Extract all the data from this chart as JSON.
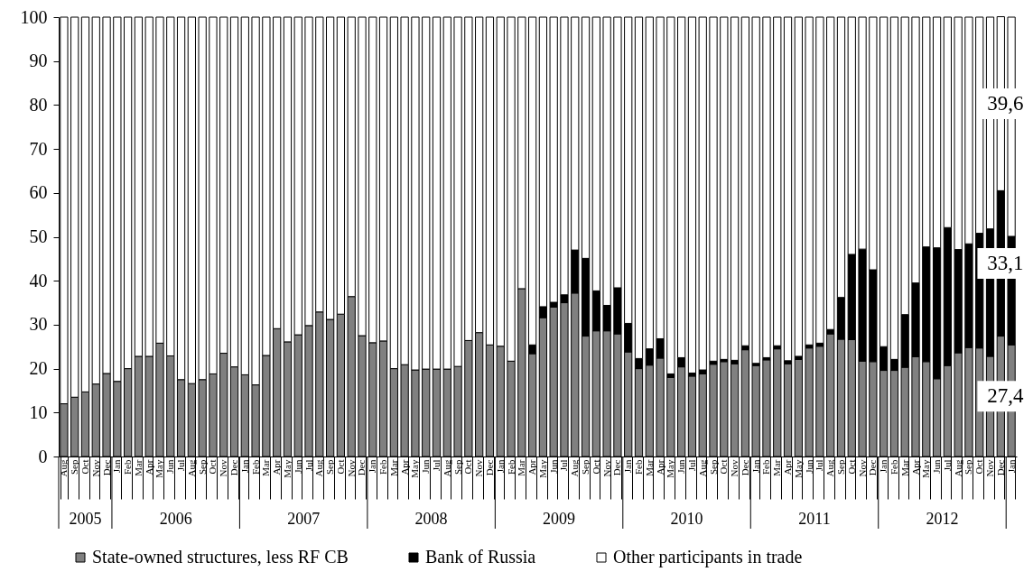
{
  "chart_data": {
    "type": "bar",
    "stacked": true,
    "legend": "bottom",
    "ylim": [
      0,
      100
    ],
    "yticks": [
      0,
      10,
      20,
      30,
      40,
      50,
      60,
      70,
      80,
      90,
      100
    ],
    "categories": [
      "Aug",
      "Sep",
      "Oct",
      "Nov",
      "Dec",
      "Jan",
      "Feb",
      "Mar",
      "Apr",
      "May",
      "Jun",
      "Jul",
      "Aug",
      "Sep",
      "Oct",
      "Nov",
      "Dec",
      "Jan",
      "Feb",
      "Mar",
      "Apr",
      "May",
      "Jun",
      "Jul",
      "Aug",
      "Sep",
      "Oct",
      "Nov",
      "Dec",
      "Jan",
      "Feb",
      "Mar",
      "Apr",
      "May",
      "Jun",
      "Jul",
      "Aug",
      "Sep",
      "Oct",
      "Nov",
      "Dec",
      "Jan",
      "Feb",
      "Mar",
      "Apr",
      "May",
      "Jun",
      "Jul",
      "Aug",
      "Sep",
      "Oct",
      "Nov",
      "Dec",
      "Jan",
      "Feb",
      "Mar",
      "Apr",
      "May",
      "Jun",
      "Jul",
      "Aug",
      "Sep",
      "Oct",
      "Nov",
      "Dec",
      "Jan",
      "Feb",
      "Mar",
      "Apr",
      "May",
      "Jun",
      "Jul",
      "Aug",
      "Sep",
      "Oct",
      "Nov",
      "Dec",
      "Jan",
      "Feb",
      "Mar",
      "Apr",
      "May",
      "Jun",
      "Jul",
      "Aug",
      "Sep",
      "Oct",
      "Nov",
      "Dec",
      "Jan"
    ],
    "annotations": [
      "2005",
      "2006",
      "2007",
      "2008",
      "2009",
      "2010",
      "2011",
      "2012"
    ],
    "series": [
      {
        "name": "State-owned structures, less RF CB",
        "color": "#808080",
        "values": [
          12.0,
          13.5,
          14.7,
          16.5,
          18.9,
          17.1,
          20.0,
          22.8,
          22.8,
          25.8,
          22.9,
          17.5,
          16.6,
          17.5,
          18.8,
          23.5,
          20.4,
          18.6,
          16.3,
          23.0,
          29.1,
          26.1,
          27.7,
          29.8,
          32.9,
          31.2,
          32.4,
          36.4,
          27.5,
          25.9,
          26.3,
          20.0,
          20.9,
          19.7,
          19.9,
          19.9,
          19.9,
          20.5,
          26.4,
          28.2,
          25.4,
          25.1,
          21.7,
          38.2,
          23.4,
          31.6,
          34.0,
          35.0,
          37.2,
          27.4,
          28.6,
          28.6,
          27.9,
          23.8,
          20.0,
          20.8,
          22.4,
          18.0,
          20.4,
          18.3,
          18.8,
          21.0,
          21.6,
          21.1,
          24.3,
          20.7,
          22.0,
          24.5,
          21.1,
          22.1,
          24.7,
          25.1,
          27.9,
          26.7,
          26.6,
          21.7,
          21.6,
          19.6,
          19.6,
          20.3,
          22.7,
          21.6,
          17.7,
          20.7,
          23.6,
          24.8,
          24.7,
          22.8,
          27.4,
          25.4
        ],
        "value_labels": [
          null,
          null,
          null,
          null,
          null,
          null,
          null,
          null,
          null,
          null,
          null,
          null,
          null,
          null,
          null,
          null,
          null,
          null,
          null,
          null,
          null,
          null,
          null,
          null,
          null,
          null,
          null,
          null,
          null,
          null,
          null,
          null,
          null,
          null,
          null,
          null,
          null,
          null,
          null,
          null,
          null,
          null,
          null,
          null,
          null,
          null,
          null,
          null,
          null,
          null,
          null,
          null,
          null,
          null,
          null,
          null,
          null,
          null,
          null,
          null,
          null,
          null,
          null,
          null,
          null,
          null,
          null,
          null,
          null,
          null,
          null,
          null,
          null,
          null,
          null,
          null,
          null,
          null,
          null,
          null,
          null,
          null,
          null,
          null,
          null,
          null,
          null,
          null,
          "27,4",
          null
        ]
      },
      {
        "name": "Bank of Russia",
        "color": "#000000",
        "values": [
          null,
          null,
          null,
          null,
          null,
          null,
          null,
          null,
          null,
          null,
          null,
          null,
          null,
          null,
          null,
          null,
          null,
          null,
          null,
          null,
          null,
          null,
          null,
          null,
          null,
          null,
          null,
          null,
          null,
          null,
          null,
          null,
          null,
          null,
          null,
          null,
          null,
          null,
          null,
          null,
          null,
          null,
          null,
          null,
          2.0,
          2.5,
          1.1,
          1.8,
          9.8,
          17.7,
          9.1,
          5.8,
          10.5,
          6.5,
          2.3,
          3.7,
          4.4,
          0.8,
          2.1,
          0.7,
          0.9,
          0.7,
          0.5,
          0.8,
          0.9,
          0.5,
          0.5,
          0.7,
          0.7,
          0.7,
          0.7,
          0.7,
          1.0,
          9.5,
          19.4,
          25.5,
          20.9,
          5.4,
          2.5,
          12.0,
          16.8,
          26.1,
          29.8,
          31.4,
          23.5,
          23.6,
          26.1,
          29.0,
          33.1,
          24.7
        ],
        "value_labels": [
          null,
          null,
          null,
          null,
          null,
          null,
          null,
          null,
          null,
          null,
          null,
          null,
          null,
          null,
          null,
          null,
          null,
          null,
          null,
          null,
          null,
          null,
          null,
          null,
          null,
          null,
          null,
          null,
          null,
          null,
          null,
          null,
          null,
          null,
          null,
          null,
          null,
          null,
          null,
          null,
          null,
          null,
          null,
          null,
          null,
          null,
          null,
          null,
          null,
          null,
          null,
          null,
          null,
          null,
          null,
          null,
          null,
          null,
          null,
          null,
          null,
          null,
          null,
          null,
          null,
          null,
          null,
          null,
          null,
          null,
          null,
          null,
          null,
          null,
          null,
          null,
          null,
          null,
          null,
          null,
          null,
          null,
          null,
          null,
          null,
          null,
          null,
          null,
          "33,1",
          null
        ]
      },
      {
        "name": "Other participants in trade",
        "color": "#ffffff",
        "values": [
          88.0,
          86.5,
          85.3,
          83.5,
          81.1,
          82.9,
          80.0,
          77.2,
          77.2,
          74.2,
          77.1,
          82.5,
          83.4,
          82.5,
          81.2,
          76.5,
          79.6,
          81.4,
          83.7,
          77.0,
          70.9,
          73.9,
          72.3,
          70.2,
          67.1,
          68.8,
          67.6,
          63.6,
          72.5,
          74.1,
          73.7,
          80.0,
          79.1,
          80.3,
          80.1,
          80.1,
          80.1,
          79.5,
          73.6,
          71.8,
          74.6,
          74.9,
          78.3,
          61.8,
          74.6,
          65.9,
          64.9,
          63.2,
          53.0,
          54.9,
          62.3,
          65.6,
          61.6,
          69.7,
          77.7,
          75.5,
          73.2,
          81.2,
          77.5,
          81.0,
          80.3,
          78.3,
          77.9,
          78.1,
          74.8,
          78.8,
          77.5,
          74.8,
          78.2,
          77.2,
          74.6,
          74.2,
          71.1,
          63.8,
          54.0,
          52.8,
          57.5,
          75.0,
          77.9,
          67.7,
          60.5,
          52.3,
          52.5,
          47.9,
          52.9,
          51.6,
          49.2,
          48.2,
          39.6,
          49.9
        ],
        "value_labels": [
          null,
          null,
          null,
          null,
          null,
          null,
          null,
          null,
          null,
          null,
          null,
          null,
          null,
          null,
          null,
          null,
          null,
          null,
          null,
          null,
          null,
          null,
          null,
          null,
          null,
          null,
          null,
          null,
          null,
          null,
          null,
          null,
          null,
          null,
          null,
          null,
          null,
          null,
          null,
          null,
          null,
          null,
          null,
          null,
          null,
          null,
          null,
          null,
          null,
          null,
          null,
          null,
          null,
          null,
          null,
          null,
          null,
          null,
          null,
          null,
          null,
          null,
          null,
          null,
          null,
          null,
          null,
          null,
          null,
          null,
          null,
          null,
          null,
          null,
          null,
          null,
          null,
          null,
          null,
          null,
          null,
          null,
          null,
          null,
          null,
          null,
          null,
          null,
          "39,6",
          null
        ]
      }
    ]
  }
}
